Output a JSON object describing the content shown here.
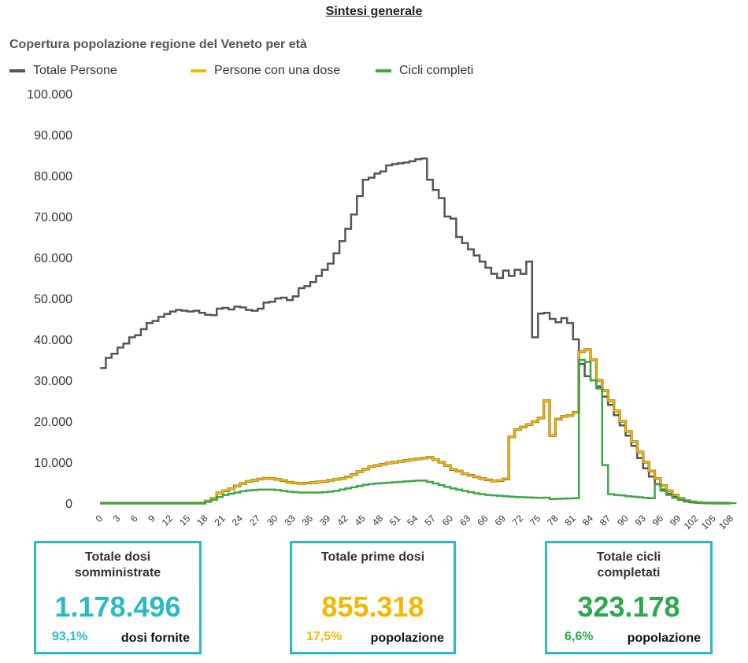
{
  "header": {
    "title": "Sintesi generale"
  },
  "colors": {
    "total": "#555555",
    "one_dose": "#f5b800",
    "complete": "#3ca844",
    "card_border": "#2bbac4",
    "teal": "#2bbac4"
  },
  "chart_data": {
    "type": "line",
    "title": "Copertura popolazione regione del Veneto per età",
    "xlabel": "",
    "ylabel": "",
    "step": true,
    "ylim": [
      0,
      100000
    ],
    "xlim": [
      0,
      108
    ],
    "yticks": [
      0,
      10000,
      20000,
      30000,
      40000,
      50000,
      60000,
      70000,
      80000,
      90000,
      100000
    ],
    "ytick_labels": [
      "0",
      "10.000",
      "20.000",
      "30.000",
      "40.000",
      "50.000",
      "60.000",
      "70.000",
      "80.000",
      "90.000",
      "100.000"
    ],
    "xtick_labels": [
      "0",
      "3",
      "6",
      "9",
      "12",
      "15",
      "18",
      "21",
      "24",
      "27",
      "30",
      "33",
      "36",
      "39",
      "42",
      "45",
      "48",
      "51",
      "54",
      "57",
      "60",
      "63",
      "66",
      "69",
      "72",
      "75",
      "78",
      "81",
      "84",
      "87",
      "90",
      "93",
      "96",
      "99",
      "102",
      "105",
      "108"
    ],
    "legend": [
      "Totale Persone",
      "Persone con una dose",
      "Cicli completi"
    ],
    "legend_position": "top-left",
    "series": [
      {
        "name": "Totale Persone",
        "color": "#555555",
        "values": [
          33000,
          35500,
          36500,
          38000,
          39000,
          40500,
          41000,
          42500,
          44000,
          44500,
          45500,
          46200,
          46800,
          47200,
          47000,
          46800,
          47000,
          46500,
          46000,
          45900,
          47500,
          47700,
          47300,
          48000,
          47800,
          47200,
          47000,
          47500,
          49000,
          49200,
          50000,
          50200,
          49600,
          50500,
          52500,
          53000,
          54000,
          55500,
          57000,
          58500,
          61000,
          64000,
          67000,
          70500,
          75000,
          79000,
          79500,
          80500,
          81000,
          82500,
          82800,
          83000,
          83200,
          83500,
          84000,
          84200,
          79000,
          76500,
          74500,
          70000,
          69500,
          65000,
          63500,
          62000,
          60500,
          59000,
          57500,
          56000,
          55000,
          56800,
          55500,
          57000,
          56000,
          59000,
          40500,
          46300,
          46500,
          45000,
          44200,
          45200,
          44000,
          40000,
          34000,
          31000,
          30000,
          28500,
          26000,
          24000,
          21500,
          19000,
          16500,
          14000,
          11000,
          8500,
          6500,
          4700,
          3300,
          2300,
          1500,
          800,
          400,
          200,
          100,
          50,
          30,
          20,
          10,
          5,
          0
        ]
      },
      {
        "name": "Persone con una dose",
        "color": "#f5b800",
        "values": [
          0,
          0,
          0,
          0,
          0,
          0,
          0,
          0,
          0,
          0,
          0,
          0,
          0,
          0,
          0,
          0,
          0,
          0,
          500,
          1200,
          2500,
          3000,
          3500,
          4200,
          4800,
          5300,
          5600,
          5900,
          6100,
          6000,
          5800,
          5500,
          5100,
          4900,
          4800,
          4900,
          5000,
          5200,
          5300,
          5600,
          5800,
          6000,
          6400,
          7000,
          7700,
          8300,
          8900,
          9200,
          9500,
          9800,
          10000,
          10200,
          10400,
          10600,
          10800,
          11000,
          11200,
          10600,
          10000,
          9200,
          8200,
          7800,
          7200,
          6800,
          6400,
          6000,
          5700,
          5400,
          5500,
          5900,
          16200,
          18000,
          18600,
          19200,
          19900,
          20800,
          25000,
          16500,
          20500,
          21200,
          21400,
          22200,
          37000,
          37500,
          35000,
          30000,
          27500,
          25000,
          22500,
          20000,
          17500,
          15000,
          12500,
          10000,
          7800,
          6000,
          4300,
          3000,
          2000,
          1200,
          600,
          300,
          150,
          80,
          40,
          20,
          10,
          5,
          0
        ]
      },
      {
        "name": "Cicli completi",
        "color": "#3ca844",
        "values": [
          0,
          0,
          0,
          0,
          0,
          0,
          0,
          0,
          0,
          0,
          0,
          0,
          0,
          0,
          0,
          0,
          0,
          0,
          300,
          800,
          1500,
          2000,
          2300,
          2600,
          2900,
          3100,
          3200,
          3300,
          3300,
          3300,
          3200,
          3000,
          2800,
          2700,
          2600,
          2600,
          2600,
          2600,
          2700,
          2800,
          3000,
          3300,
          3600,
          3900,
          4200,
          4500,
          4700,
          4800,
          4900,
          5000,
          5100,
          5200,
          5300,
          5400,
          5500,
          5500,
          5200,
          4800,
          4400,
          4000,
          3600,
          3300,
          3000,
          2700,
          2400,
          2200,
          2000,
          1900,
          1800,
          1700,
          1600,
          1500,
          1450,
          1400,
          1350,
          1300,
          1350,
          1000,
          1050,
          1100,
          1150,
          1200,
          35000,
          34500,
          30000,
          28000,
          9300,
          2200,
          2000,
          1900,
          1700,
          1600,
          1450,
          1300,
          1200,
          4600,
          3000,
          2000,
          1300,
          900,
          600,
          350,
          200,
          100,
          50,
          30,
          20,
          10,
          5,
          0
        ]
      }
    ]
  },
  "cards": [
    {
      "title": "Totale dosi somministrate",
      "value": "1.178.496",
      "pct": "93,1%",
      "sub": "dosi fornite",
      "color": "#2bbac4"
    },
    {
      "title": "Totale prime dosi",
      "value": "855.318",
      "pct": "17,5%",
      "sub": "popolazione",
      "color": "#f5b800"
    },
    {
      "title": "Totale cicli completati",
      "value": "323.178",
      "pct": "6,6%",
      "sub": "popolazione",
      "color": "#2aa84a"
    }
  ]
}
